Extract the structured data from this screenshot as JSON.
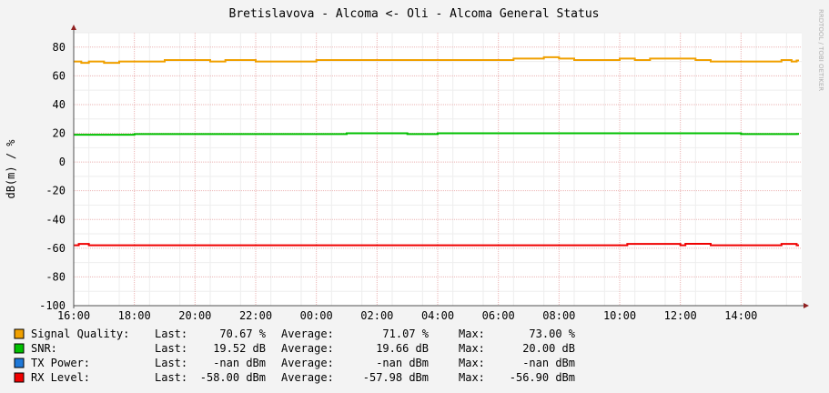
{
  "title": "Bretislavova - Alcoma <- Oli - Alcoma General Status",
  "watermark": "RRDTOOL / TOBI OETIKER",
  "chart_data": {
    "type": "line",
    "title": "Bretislavova - Alcoma <- Oli - Alcoma General Status",
    "ylabel": "dB(m) / %",
    "xlabel": "",
    "ylim": [
      -100,
      90
    ],
    "y_ticks": [
      "80",
      "60",
      "40",
      "20",
      "0",
      "-20",
      "-40",
      "-60",
      "-80",
      "-100"
    ],
    "x_range": [
      "16:00",
      "16:00"
    ],
    "x_ticks": [
      "16:00",
      "18:00",
      "20:00",
      "22:00",
      "00:00",
      "02:00",
      "04:00",
      "06:00",
      "08:00",
      "10:00",
      "12:00",
      "14:00"
    ],
    "grid": true,
    "legend_position": "bottom",
    "series": [
      {
        "name": "Signal Quality",
        "color": "#f0a000",
        "x": [
          "16:00",
          "16:15",
          "16:30",
          "17:00",
          "17:30",
          "18:00",
          "19:00",
          "20:00",
          "20:30",
          "21:00",
          "22:00",
          "22:30",
          "23:00",
          "23:30",
          "00:00",
          "01:00",
          "02:00",
          "02:30",
          "03:00",
          "04:00",
          "05:00",
          "06:00",
          "06:30",
          "07:00",
          "07:30",
          "08:00",
          "08:30",
          "09:00",
          "10:00",
          "10:30",
          "11:00",
          "12:00",
          "12:30",
          "13:00",
          "14:00",
          "15:00",
          "15:20",
          "15:40",
          "15:50"
        ],
        "values": [
          70,
          69,
          70,
          69,
          70,
          70,
          71,
          71,
          70,
          71,
          70,
          70,
          70,
          70,
          71,
          71,
          71,
          71,
          71,
          71,
          71,
          71,
          72,
          72,
          73,
          72,
          71,
          71,
          72,
          71,
          72,
          72,
          71,
          70,
          70,
          70,
          71,
          70,
          70.67
        ]
      },
      {
        "name": "SNR",
        "color": "#00c000",
        "x": [
          "16:00",
          "17:00",
          "18:00",
          "19:00",
          "20:00",
          "21:00",
          "22:00",
          "23:00",
          "00:00",
          "01:00",
          "02:00",
          "03:00",
          "04:00",
          "05:00",
          "06:00",
          "07:00",
          "08:00",
          "09:00",
          "10:00",
          "11:00",
          "12:00",
          "13:00",
          "14:00",
          "15:00",
          "15:50"
        ],
        "values": [
          19,
          19,
          19.5,
          19.5,
          19.5,
          19.5,
          19.5,
          19.5,
          19.5,
          20,
          20,
          19.5,
          20,
          20,
          20,
          20,
          20,
          20,
          20,
          20,
          20,
          20,
          19.5,
          19.5,
          19.52
        ]
      },
      {
        "name": "RX Level",
        "color": "#f00000",
        "x": [
          "16:00",
          "16:10",
          "16:30",
          "18:00",
          "20:00",
          "22:00",
          "00:00",
          "02:00",
          "04:00",
          "06:00",
          "08:00",
          "10:00",
          "10:15",
          "12:00",
          "12:10",
          "13:00",
          "14:00",
          "15:15",
          "15:20",
          "15:50"
        ],
        "values": [
          -58,
          -57,
          -58,
          -58,
          -58,
          -58,
          -58,
          -58,
          -58,
          -58,
          -58,
          -58,
          -57,
          -58,
          -56.9,
          -58,
          -58,
          -58,
          -57,
          -58
        ]
      }
    ]
  },
  "legend": [
    {
      "name": "Signal Quality:",
      "color": "#f0a000",
      "last_label": "Last:",
      "last": "70.67 %",
      "avg_label": "Average:",
      "avg": "71.07 %",
      "max_label": "Max:",
      "max": "73.00 %"
    },
    {
      "name": "SNR:",
      "color": "#00c000",
      "last_label": "Last:",
      "last": "19.52 dB",
      "avg_label": "Average:",
      "avg": "19.66 dB",
      "max_label": "Max:",
      "max": "20.00 dB"
    },
    {
      "name": "TX Power:",
      "color": "#1e78d8",
      "last_label": "Last:",
      "last": "-nan dBm",
      "avg_label": "Average:",
      "avg": "-nan dBm",
      "max_label": "Max:",
      "max": "-nan dBm"
    },
    {
      "name": "RX Level:",
      "color": "#f00000",
      "last_label": "Last:",
      "last": "-58.00 dBm",
      "avg_label": "Average:",
      "avg": "-57.98 dBm",
      "max_label": "Max:",
      "max": "-56.90 dBm"
    }
  ]
}
